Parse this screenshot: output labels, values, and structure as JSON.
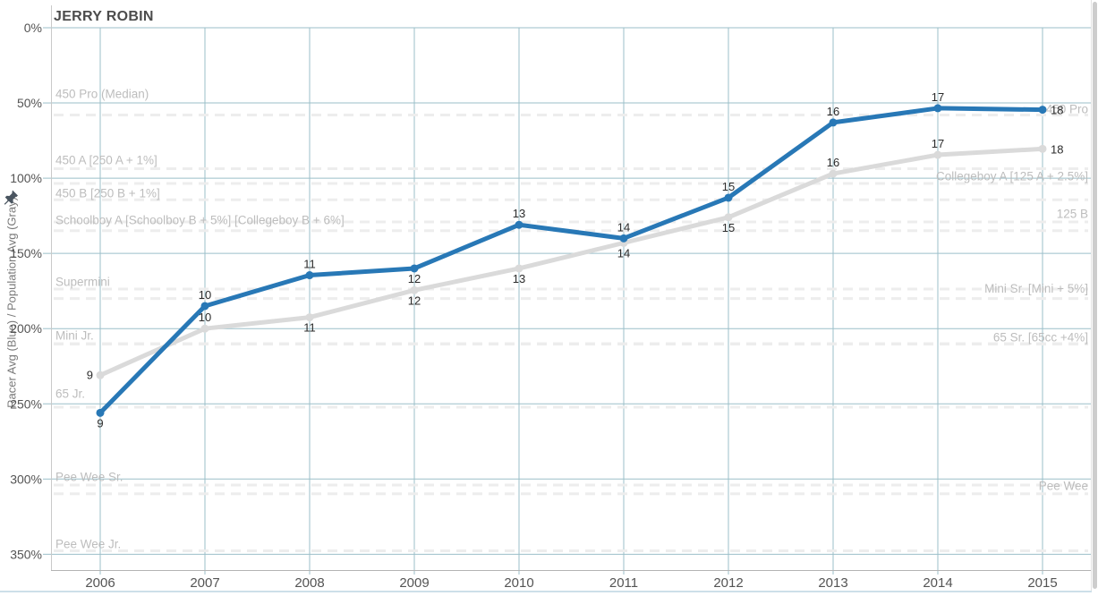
{
  "chart_data": {
    "type": "line",
    "title": "JERRY ROBIN",
    "ylabel": "Racer Avg (Blue) / Population Avg (Gray)",
    "xlabel": "",
    "x_tick_labels": [
      "2006",
      "2007",
      "2008",
      "2009",
      "2010",
      "2011",
      "2012",
      "2013",
      "2014",
      "2015"
    ],
    "y_axis": {
      "unit": "%",
      "min": 0,
      "max": 350,
      "tick_step": 50,
      "inverted": true,
      "tick_labels": [
        "0%",
        "50%",
        "100%",
        "150%",
        "200%",
        "250%",
        "300%",
        "350%"
      ]
    },
    "grid": true,
    "legend_position": "none",
    "series": [
      {
        "name": "Population Avg",
        "color_key": "series_gray",
        "values": [
          231,
          200,
          192.5,
          174.5,
          160,
          143,
          126,
          97,
          84.5,
          80.5
        ],
        "point_labels": [
          "9",
          "10",
          "11",
          "12",
          "13",
          "14",
          "15",
          "16",
          "17",
          "18"
        ],
        "label_side": [
          "left",
          "above",
          "below",
          "below",
          "below",
          "below",
          "below",
          "above",
          "above",
          "right"
        ]
      },
      {
        "name": "Racer Avg",
        "color_key": "series_blue",
        "values": [
          256,
          185,
          164.5,
          160,
          131,
          140,
          113,
          63,
          53.5,
          54.5
        ],
        "point_labels": [
          "9",
          "10",
          "11",
          "12",
          "13",
          "14",
          "15",
          "16",
          "17",
          "18"
        ],
        "label_side": [
          "below",
          "above",
          "above",
          "below",
          "above",
          "above",
          "above",
          "above",
          "above",
          "right"
        ]
      }
    ],
    "reference_lines": [
      {
        "label": "450 Pro (Median)",
        "side": "left",
        "label_pct": 44,
        "line_pct": 58
      },
      {
        "label": "450 Pro",
        "side": "right",
        "label_pct": 54.1,
        "line_pct": null
      },
      {
        "label": "450 A [250 A + 1%]",
        "side": "left",
        "label_pct": 88,
        "line_pct": 93.7
      },
      {
        "label": "Collegeboy A [125 A + 2.5%]",
        "side": "right",
        "label_pct": 98.8,
        "line_pct": 103.5
      },
      {
        "label": "450 B [250 B + 1%]",
        "side": "left",
        "label_pct": 110.1,
        "line_pct": 114.4
      },
      {
        "label": "125 B",
        "side": "right",
        "label_pct": 123.7,
        "line_pct": 134.9
      },
      {
        "label": "Schoolboy A [Schoolboy B + 5%] [Collegeboy B + 6%]",
        "side": "left",
        "label_pct": 127.9,
        "line_pct": 129.1
      },
      {
        "label": "Supermini",
        "side": "left",
        "label_pct": 169,
        "line_pct": 173.7
      },
      {
        "label": "Mini Sr. [Mini + 5%]",
        "side": "right",
        "label_pct": 173.5,
        "line_pct": 180
      },
      {
        "label": "Mini Jr.",
        "side": "left",
        "label_pct": 204.6,
        "line_pct": 210
      },
      {
        "label": "65 Sr. [65cc +4%]",
        "side": "right",
        "label_pct": 205.8,
        "line_pct": 210.3
      },
      {
        "label": "65 Jr.",
        "side": "left",
        "label_pct": 243.3,
        "line_pct": 252.2
      },
      {
        "label": "Pee Wee Sr.",
        "side": "left",
        "label_pct": 298.6,
        "line_pct": 304
      },
      {
        "label": "Pee Wee",
        "side": "right",
        "label_pct": 304.6,
        "line_pct": 309.8
      },
      {
        "label": "Pee Wee Jr.",
        "side": "left",
        "label_pct": 343.2,
        "line_pct": 347.7
      }
    ]
  },
  "colors": {
    "series_blue": "#2878b6",
    "series_gray": "#dadada",
    "gridline": "#9bbfc9",
    "ref_line": "#ededed",
    "axis_line": "#b3b3b3",
    "frame_line": "#c9c9c9",
    "ref_label": "#bdbdbd",
    "tick_label": "#545454",
    "data_label": "#2b2b2b",
    "title": "#4c4c4c",
    "pin_icon": "#4a5560",
    "scrollbar": "#cdcdcd",
    "bottom_border": "#cddfe9"
  }
}
